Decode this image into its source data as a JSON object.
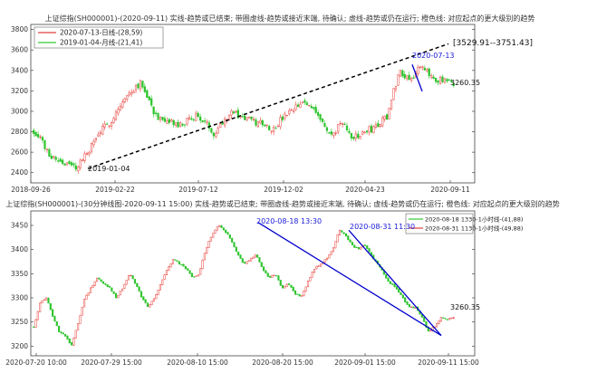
{
  "chart_data": [
    {
      "type": "candlestick",
      "title": "上证综指(SH000001)-(2020-09-11)  实线-趋势或已结束;  带圈虚线-趋势或接近末端,  待确认;  虚线-趋势或仍在运行;  橙色线:  对应起点的更大级别的趋势",
      "ylim": [
        2300,
        3850
      ],
      "yticks": [
        2400,
        2600,
        2800,
        3000,
        3200,
        3400,
        3600,
        3800
      ],
      "xticks": [
        "2018-09-26",
        "2019-02-22",
        "2019-07-12",
        "2019-12-02",
        "2020-04-23",
        "2020-09-11"
      ],
      "legend": {
        "position": "top-left",
        "entries": [
          {
            "label": "2020-07-13-日线-(28,59)",
            "color": "#e04040"
          },
          {
            "label": "2019-01-04-月线-(21,41)",
            "color": "#33cc33"
          }
        ]
      },
      "close_profile": [
        2800,
        2770,
        2620,
        2560,
        2530,
        2500,
        2470,
        2450,
        2520,
        2600,
        2700,
        2800,
        2850,
        2920,
        3020,
        3100,
        3180,
        3250,
        3280,
        3150,
        3000,
        2920,
        2870,
        2900,
        2850,
        2880,
        2920,
        2960,
        2920,
        2860,
        2790,
        2860,
        2940,
        3000,
        2960,
        2940,
        2920,
        2880,
        2900,
        2850,
        2830,
        2900,
        2960,
        2990,
        3050,
        3080,
        3060,
        3020,
        2900,
        2790,
        2760,
        2900,
        2830,
        2760,
        2740,
        2800,
        2820,
        2850,
        2900,
        2960,
        3200,
        3400,
        3350,
        3320,
        3420,
        3400,
        3360,
        3320,
        3300,
        3280,
        3260
      ],
      "candles_shown": 190,
      "trend_lines": [
        {
          "style": "dashed",
          "color": "#000000",
          "from": {
            "x": "2019-01-04",
            "y": 2440
          },
          "to": {
            "x": "2020-09-11",
            "y": 3660
          }
        },
        {
          "style": "solid",
          "color": "#0000cc",
          "from": {
            "x": "2020-07-13",
            "y": 3458
          },
          "to": {
            "x": "2020-07-24",
            "y": 3196
          }
        }
      ],
      "annotations": {
        "start_label": "2019-01-04",
        "peak_label": "2020-07-13",
        "range_label": "[3529.91--3751.43]",
        "last_value": "3260.35"
      }
    },
    {
      "type": "candlestick",
      "title": "上证综指(SH000001)-(30分钟线图-2020-09-11 15:00)  实线-趋势或已结束;  带圈虚线-趋势或接近末端,  待确认;  虚线-趋势或仍在运行;  橙色线:  对应起点的更大级别的趋势",
      "ylim": [
        3180,
        3480
      ],
      "yticks": [
        3200,
        3250,
        3300,
        3350,
        3400,
        3450
      ],
      "xticks": [
        "2020-07-20 10:00",
        "2020-07-29 15:00",
        "2020-08-10 15:00",
        "2020-08-20 15:00",
        "2020-09-01 15:00",
        "2020-09-11 15:00"
      ],
      "legend": {
        "position": "top-right",
        "entries": [
          {
            "label": "2020-08-18 1330-1小时线-(41,88)",
            "color": "#33cc33"
          },
          {
            "label": "2020-08-31 1130-1小时线-(49,88)",
            "color": "#e04040"
          }
        ]
      },
      "close_profile": [
        3240,
        3290,
        3300,
        3260,
        3230,
        3220,
        3200,
        3250,
        3300,
        3320,
        3340,
        3330,
        3320,
        3300,
        3320,
        3350,
        3330,
        3300,
        3280,
        3300,
        3330,
        3360,
        3380,
        3370,
        3360,
        3340,
        3350,
        3400,
        3430,
        3450,
        3440,
        3420,
        3390,
        3370,
        3380,
        3390,
        3360,
        3340,
        3350,
        3320,
        3330,
        3310,
        3300,
        3330,
        3360,
        3370,
        3380,
        3400,
        3440,
        3430,
        3410,
        3400,
        3410,
        3390,
        3370,
        3350,
        3330,
        3320,
        3300,
        3280,
        3280,
        3260,
        3230,
        3240,
        3260,
        3255,
        3260
      ],
      "candles_shown": 200,
      "trend_lines": [
        {
          "style": "solid",
          "color": "#0000cc",
          "from": {
            "x": "2020-08-18 13:30",
            "y": 3456
          },
          "to": {
            "x": "2020-09-10 14:00",
            "y": 3222
          }
        },
        {
          "style": "solid",
          "color": "#0000cc",
          "from": {
            "x": "2020-08-31 11:30",
            "y": 3440
          },
          "to": {
            "x": "2020-09-10 14:00",
            "y": 3222
          }
        }
      ],
      "annotations": {
        "peak_label_1": "2020-08-18 13:30",
        "peak_label_2": "2020-08-31 11:30",
        "last_value": "3260.35"
      }
    }
  ]
}
